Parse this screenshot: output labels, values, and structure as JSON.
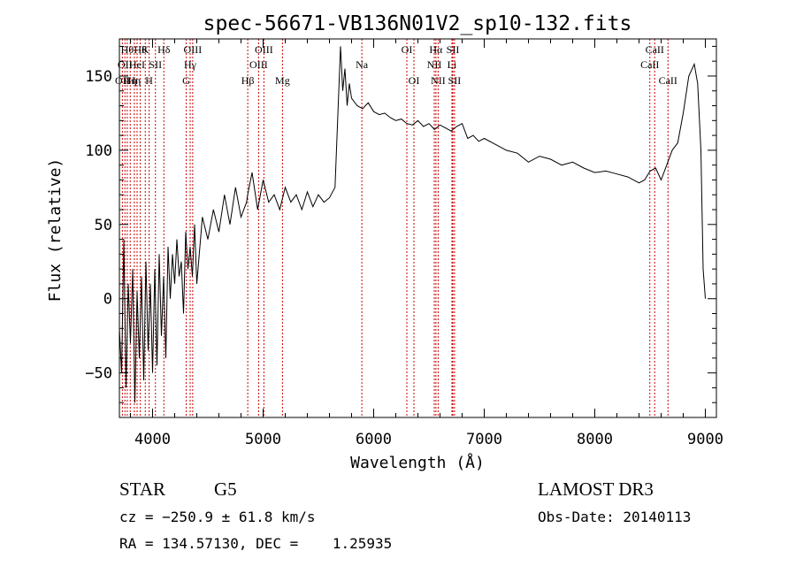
{
  "chart_data": {
    "type": "line",
    "title": "spec-56671-VB136N01V2_sp10-132.fits",
    "xlabel": "Wavelength (Å)",
    "ylabel": "Flux (relative)",
    "xlim": [
      3700,
      9100
    ],
    "ylim": [
      -80,
      175
    ],
    "xticks": [
      4000,
      5000,
      6000,
      7000,
      8000,
      9000
    ],
    "yticks": [
      -50,
      0,
      50,
      100,
      150
    ],
    "grid": false,
    "line_color": "#000000",
    "marker_line_color": "#cc0000",
    "series": [
      {
        "x": [
          3700,
          3720,
          3740,
          3760,
          3780,
          3800,
          3820,
          3840,
          3860,
          3880,
          3900,
          3920,
          3940,
          3960,
          3980,
          4000,
          4020,
          4040,
          4060,
          4080,
          4100,
          4120,
          4140,
          4160,
          4180,
          4200,
          4220,
          4240,
          4260,
          4280,
          4300,
          4320,
          4340,
          4360,
          4380,
          4400,
          4450,
          4500,
          4550,
          4600,
          4650,
          4700,
          4750,
          4800,
          4850,
          4860,
          4900,
          4950,
          5000,
          5050,
          5100,
          5150,
          5200,
          5250,
          5300,
          5350,
          5400,
          5450,
          5500,
          5550,
          5600,
          5650,
          5700,
          5720,
          5740,
          5760,
          5780,
          5800,
          5850,
          5900,
          5950,
          6000,
          6050,
          6100,
          6150,
          6200,
          6250,
          6300,
          6350,
          6400,
          6450,
          6500,
          6550,
          6600,
          6650,
          6700,
          6750,
          6800,
          6850,
          6900,
          6950,
          7000,
          7100,
          7200,
          7300,
          7400,
          7500,
          7600,
          7700,
          7800,
          7900,
          8000,
          8100,
          8200,
          8300,
          8400,
          8450,
          8500,
          8550,
          8600,
          8650,
          8700,
          8750,
          8800,
          8850,
          8900,
          8930,
          8960,
          8980,
          9000
        ],
        "y": [
          -20,
          -50,
          40,
          -60,
          10,
          -30,
          20,
          -70,
          5,
          -40,
          15,
          -55,
          25,
          -35,
          10,
          -50,
          20,
          -45,
          30,
          -25,
          15,
          -40,
          35,
          0,
          30,
          10,
          40,
          15,
          25,
          -10,
          45,
          20,
          35,
          15,
          50,
          10,
          55,
          40,
          60,
          45,
          70,
          50,
          75,
          55,
          65,
          70,
          85,
          60,
          80,
          65,
          70,
          60,
          75,
          65,
          70,
          60,
          72,
          62,
          70,
          65,
          68,
          75,
          170,
          140,
          155,
          130,
          145,
          135,
          130,
          128,
          132,
          126,
          124,
          125,
          122,
          120,
          121,
          118,
          117,
          120,
          116,
          118,
          114,
          117,
          115,
          113,
          116,
          118,
          108,
          110,
          106,
          108,
          104,
          100,
          98,
          92,
          96,
          94,
          90,
          92,
          88,
          85,
          86,
          84,
          82,
          78,
          80,
          86,
          88,
          80,
          90,
          100,
          105,
          125,
          150,
          158,
          145,
          100,
          20,
          0
        ]
      }
    ],
    "line_markers": [
      {
        "x": 3727,
        "label": "OII",
        "row": 2
      },
      {
        "x": 3750,
        "label": "OII",
        "row": 1
      },
      {
        "x": 3771,
        "label": "Hθ",
        "row": 0
      },
      {
        "x": 3798,
        "label": "Hη",
        "row": 2
      },
      {
        "x": 3835,
        "label": "Hη",
        "row": 2
      },
      {
        "x": 3860,
        "label": "HeI",
        "row": 1
      },
      {
        "x": 3889,
        "label": "Hθ",
        "row": 0
      },
      {
        "x": 3934,
        "label": "K",
        "row": 0
      },
      {
        "x": 3969,
        "label": "H",
        "row": 2
      },
      {
        "x": 4026,
        "label": "SII",
        "row": 1
      },
      {
        "x": 4102,
        "label": "Hδ",
        "row": 0
      },
      {
        "x": 4304,
        "label": "G",
        "row": 2
      },
      {
        "x": 4340,
        "label": "Hγ",
        "row": 1
      },
      {
        "x": 4363,
        "label": "OIII",
        "row": 0
      },
      {
        "x": 4861,
        "label": "Hβ",
        "row": 2
      },
      {
        "x": 4959,
        "label": "OIII",
        "row": 1
      },
      {
        "x": 5007,
        "label": "OIII",
        "row": 0
      },
      {
        "x": 5175,
        "label": "Mg",
        "row": 2
      },
      {
        "x": 5893,
        "label": "Na",
        "row": 1
      },
      {
        "x": 6300,
        "label": "OI",
        "row": 0
      },
      {
        "x": 6364,
        "label": "OI",
        "row": 2
      },
      {
        "x": 6548,
        "label": "NII",
        "row": 1
      },
      {
        "x": 6563,
        "label": "Hα",
        "row": 0
      },
      {
        "x": 6583,
        "label": "NII",
        "row": 2
      },
      {
        "x": 6708,
        "label": "Li",
        "row": 1
      },
      {
        "x": 6716,
        "label": "SII",
        "row": 0
      },
      {
        "x": 6731,
        "label": "SII",
        "row": 2
      },
      {
        "x": 8498,
        "label": "CaII",
        "row": 1
      },
      {
        "x": 8542,
        "label": "CaII",
        "row": 0
      },
      {
        "x": 8662,
        "label": "CaII",
        "row": 2
      }
    ]
  },
  "info": {
    "class_label": "STAR",
    "subclass_label": "G5",
    "cz": "cz = −250.9 ± 61.8 km/s",
    "coords": "RA = 134.57130, DEC =    1.25935",
    "survey": "LAMOST DR3",
    "obs_date": "Obs-Date: 20140113"
  }
}
